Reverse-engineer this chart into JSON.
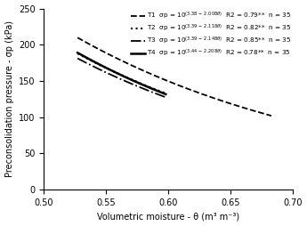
{
  "xlabel": "Volumetric moisture - θ (m³ m⁻³)",
  "ylabel": "Preconsolidation pressure - σp (kPa)",
  "xlim": [
    0.5,
    0.7
  ],
  "ylim": [
    0,
    250
  ],
  "xticks": [
    0.5,
    0.55,
    0.6,
    0.65,
    0.7
  ],
  "yticks": [
    0,
    50,
    100,
    150,
    200,
    250
  ],
  "line_configs": [
    {
      "a": 3.38,
      "b": 2.008,
      "x_start": 0.527,
      "x_end": 0.683,
      "ls": "--",
      "lw": 1.3
    },
    {
      "a": 3.39,
      "b": 2.118,
      "x_start": 0.527,
      "x_end": 0.598,
      "ls": ":",
      "lw": 1.5
    },
    {
      "a": 3.39,
      "b": 2.148,
      "x_start": 0.527,
      "x_end": 0.598,
      "ls": "-.",
      "lw": 1.3
    },
    {
      "a": 3.44,
      "b": 2.208,
      "x_start": 0.527,
      "x_end": 0.598,
      "ls": "-",
      "lw": 1.8
    }
  ],
  "legend_texts": [
    "T1  σp = 10$^{(3.38\\,-\\,2.008\\theta)}$  R2 = 0.79**  n = 35",
    "T2  σp = 10$^{(3.39\\,-\\,2.118\\theta)}$  R2 = 0.82**  n = 35",
    "T3  σp = 10$^{(3.39\\,-\\,2.148\\theta)}$  R2 = 0.85**  n = 35",
    "T4  σp = 10$^{(3.44\\,-\\,2.208\\theta)}$  R2 = 0.78**  n = 35"
  ],
  "color": "black",
  "legend_fontsize": 5.2,
  "tick_fontsize": 7,
  "label_fontsize": 7
}
